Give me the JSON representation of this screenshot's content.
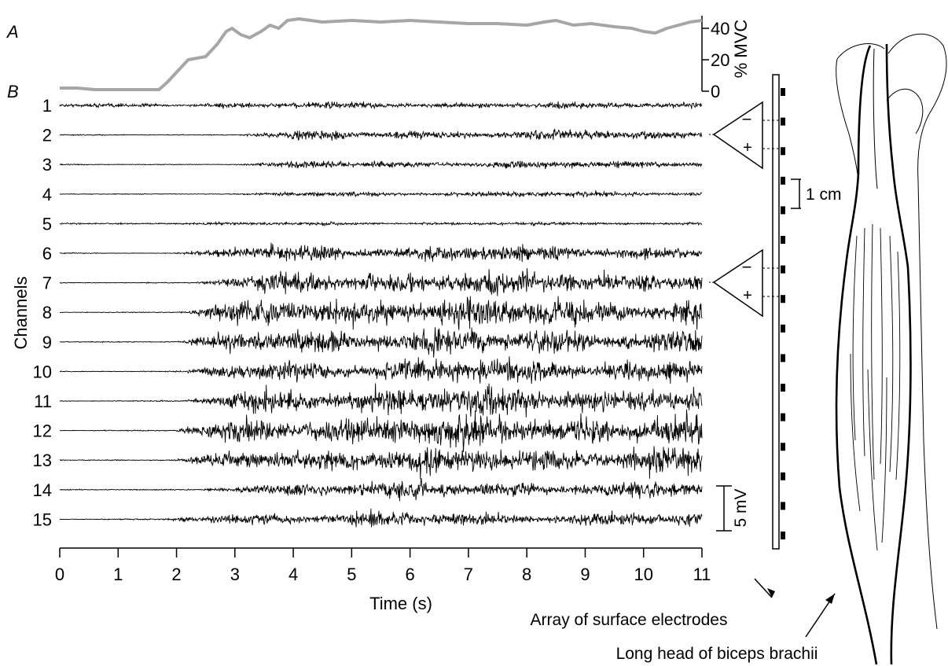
{
  "panel_a_label": "A",
  "panel_b_label": "B",
  "chart_data": [
    {
      "type": "line",
      "panel": "A",
      "x": [
        0,
        0.3,
        0.6,
        1.0,
        1.4,
        1.7,
        1.85,
        2.0,
        2.2,
        2.5,
        2.7,
        2.85,
        2.95,
        3.1,
        3.25,
        3.45,
        3.6,
        3.75,
        3.9,
        4.1,
        4.5,
        5.0,
        5.5,
        6.0,
        6.5,
        7.0,
        7.5,
        8.0,
        8.3,
        8.5,
        8.8,
        9.1,
        9.5,
        9.8,
        10.0,
        10.2,
        10.4,
        10.6,
        10.8,
        11.0
      ],
      "series": [
        {
          "color": "#a6a6a6",
          "values": [
            2,
            2,
            1,
            1,
            1,
            1,
            6,
            12,
            20,
            22,
            30,
            38,
            40,
            36,
            34,
            38,
            42,
            40,
            45,
            46,
            44,
            45,
            44,
            45,
            44,
            43,
            43,
            42,
            44,
            45,
            42,
            43,
            41,
            40,
            38,
            37,
            40,
            42,
            44,
            45
          ]
        }
      ],
      "ylim": [
        0,
        48
      ],
      "yticks": [
        0,
        20,
        40
      ],
      "ylabel": "% MVC"
    },
    {
      "type": "line",
      "panel": "B",
      "xlabel": "Time (s)",
      "ylabel": "Channels",
      "xlim": [
        0,
        11
      ],
      "xticks": [
        0,
        1,
        2,
        3,
        4,
        5,
        6,
        7,
        8,
        9,
        10,
        11
      ],
      "channels": [
        "1",
        "2",
        "3",
        "4",
        "5",
        "6",
        "7",
        "8",
        "9",
        "10",
        "11",
        "12",
        "13",
        "14",
        "15"
      ],
      "approx_onset_s": [
        0,
        2.9,
        2.9,
        3.0,
        0,
        2.0,
        2.3,
        2.0,
        2.0,
        2.1,
        2.1,
        1.9,
        2.0,
        2.4,
        1.7
      ],
      "approx_peak_amplitude_mv": [
        0.6,
        0.9,
        0.7,
        0.5,
        0.3,
        1.5,
        2.2,
        2.8,
        2.5,
        2.4,
        2.6,
        2.8,
        2.5,
        1.6,
        1.3
      ],
      "scale_bar_label": "5 mV",
      "color": "#000000"
    }
  ],
  "schematic": {
    "minus_sign": "−",
    "plus_sign": "+",
    "spacing_label": "1 cm",
    "electrode_count": 16,
    "array_label": "Array of surface electrodes",
    "muscle_label": "Long head of biceps brachii"
  }
}
